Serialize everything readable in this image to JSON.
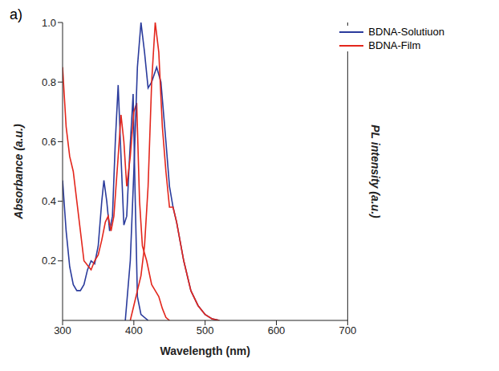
{
  "chart_data": {
    "type": "line",
    "title": "a)",
    "x_label": "Wavelength (nm)",
    "y_label": "Absorbance (a.u.)",
    "y2_label": "PL intensity (a.u.)",
    "xlim": [
      300,
      700
    ],
    "xticks": [
      300,
      400,
      500,
      600,
      700
    ],
    "ylim": [
      0,
      1
    ],
    "yticks": [
      0.2,
      0.4,
      0.6,
      0.8,
      {
        "value": 1,
        "label": "1.0"
      }
    ],
    "y2lim": [
      0,
      1
    ],
    "y2ticks": [],
    "legend": "upper right",
    "series": [
      {
        "name": "BDNA-Solutiuon",
        "color": "#2a3b9c",
        "x": [
          300,
          305,
          310,
          315,
          320,
          325,
          330,
          335,
          340,
          345,
          350,
          355,
          358,
          362,
          366,
          370,
          374,
          378,
          382,
          386,
          390,
          394,
          399,
          402,
          405,
          410,
          420
        ],
        "values": [
          0.47,
          0.3,
          0.18,
          0.12,
          0.1,
          0.1,
          0.12,
          0.17,
          0.2,
          0.19,
          0.25,
          0.4,
          0.47,
          0.4,
          0.3,
          0.35,
          0.6,
          0.79,
          0.55,
          0.32,
          0.35,
          0.55,
          0.76,
          0.4,
          0.08,
          0.02,
          0
        ]
      },
      {
        "name": "BDNA-Film",
        "color": "#e3261c",
        "x": [
          300,
          305,
          310,
          315,
          320,
          325,
          330,
          340,
          345,
          350,
          355,
          360,
          364,
          368,
          372,
          378,
          382,
          386,
          390,
          395,
          400,
          404,
          408,
          412,
          418,
          425,
          430,
          435,
          440,
          445,
          450
        ],
        "values": [
          0.85,
          0.65,
          0.55,
          0.5,
          0.4,
          0.3,
          0.2,
          0.17,
          0.2,
          0.22,
          0.27,
          0.33,
          0.35,
          0.3,
          0.35,
          0.55,
          0.69,
          0.6,
          0.45,
          0.55,
          0.7,
          0.73,
          0.4,
          0.25,
          0.2,
          0.12,
          0.1,
          0.08,
          0.04,
          0.01,
          0
        ]
      },
      {
        "name": "BDNA-Solutiuon",
        "color": "#2a3b9c",
        "axis": "y2",
        "x": [
          388,
          395,
          400,
          405,
          410,
          415,
          420,
          425,
          432,
          438,
          445,
          450,
          455,
          460,
          470,
          480,
          490,
          500,
          510,
          520
        ],
        "values": [
          0,
          0.2,
          0.5,
          0.85,
          1,
          0.9,
          0.78,
          0.8,
          0.85,
          0.8,
          0.6,
          0.45,
          0.38,
          0.33,
          0.2,
          0.1,
          0.05,
          0.02,
          0.005,
          0
        ]
      },
      {
        "name": "BDNA-Film",
        "color": "#e3261c",
        "axis": "y2",
        "x": [
          395,
          400,
          405,
          410,
          415,
          420,
          425,
          430,
          435,
          440,
          445,
          450,
          455,
          460,
          470,
          480,
          490,
          500,
          510,
          520
        ],
        "values": [
          0,
          0.05,
          0.1,
          0.15,
          0.25,
          0.45,
          0.8,
          1,
          0.9,
          0.65,
          0.5,
          0.38,
          0.38,
          0.33,
          0.2,
          0.1,
          0.05,
          0.02,
          0.005,
          0
        ]
      }
    ]
  }
}
